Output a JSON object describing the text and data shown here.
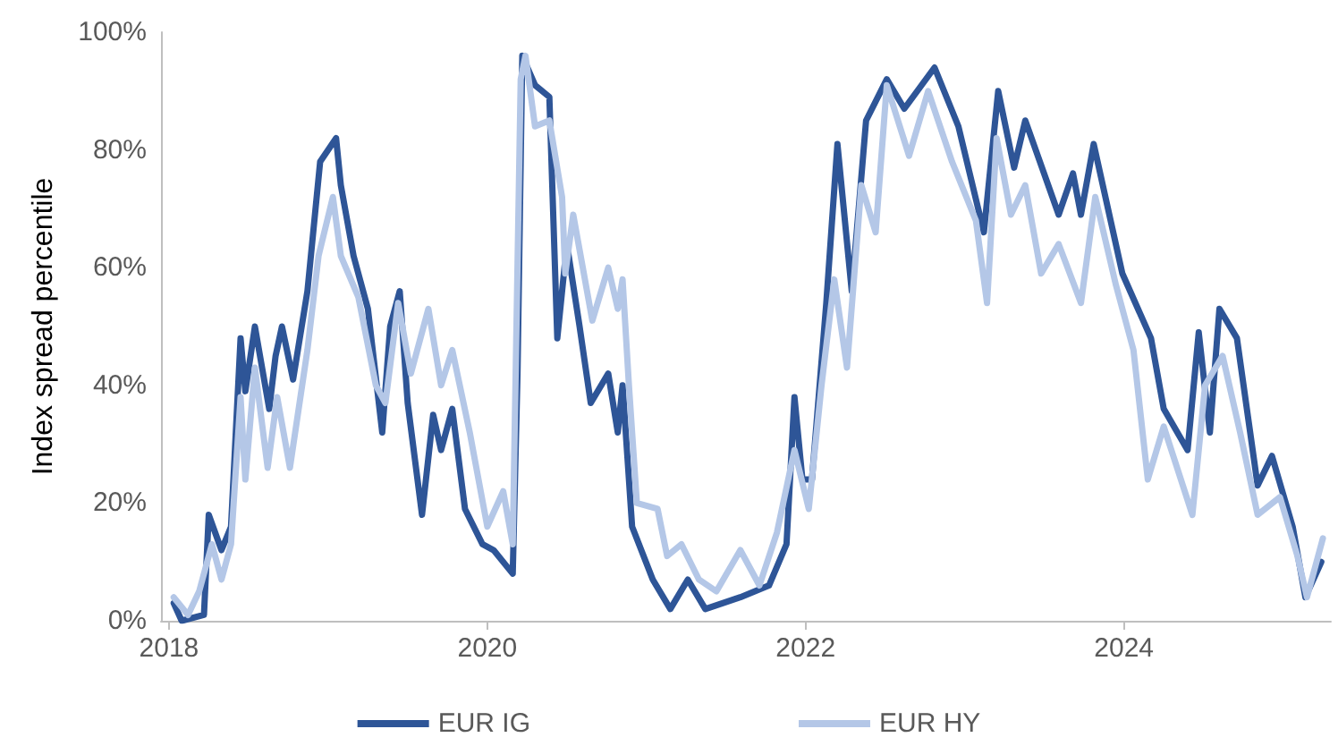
{
  "chart_data": {
    "type": "line",
    "ylabel": "Index spread percentile",
    "xlim": [
      2017.95,
      2025.3
    ],
    "xticks": [
      2018,
      2020,
      2022,
      2024
    ],
    "ylim": [
      0,
      100
    ],
    "yticks": [
      {
        "value": 0,
        "label": "0%"
      },
      {
        "value": 20,
        "label": "20%"
      },
      {
        "value": 40,
        "label": "40%"
      },
      {
        "value": 60,
        "label": "60%"
      },
      {
        "value": 80,
        "label": "80%"
      },
      {
        "value": 100,
        "label": "100%"
      }
    ],
    "grid": false,
    "legend": "bottom",
    "marker": "none",
    "line_style": "solid",
    "series": [
      {
        "name": "EUR IG",
        "color": "#2e5597",
        "x": [
          2018.03,
          2018.08,
          2018.22,
          2018.25,
          2018.33,
          2018.39,
          2018.45,
          2018.48,
          2018.54,
          2018.63,
          2018.67,
          2018.71,
          2018.78,
          2018.87,
          2018.95,
          2019.05,
          2019.08,
          2019.16,
          2019.25,
          2019.34,
          2019.39,
          2019.45,
          2019.5,
          2019.59,
          2019.66,
          2019.71,
          2019.78,
          2019.86,
          2019.97,
          2020.04,
          2020.16,
          2020.19,
          2020.22,
          2020.3,
          2020.39,
          2020.44,
          2020.5,
          2020.58,
          2020.65,
          2020.76,
          2020.82,
          2020.85,
          2020.91,
          2021.04,
          2021.15,
          2021.26,
          2021.37,
          2021.59,
          2021.77,
          2021.88,
          2021.93,
          2021.98,
          2022.04,
          2022.13,
          2022.2,
          2022.29,
          2022.38,
          2022.51,
          2022.62,
          2022.81,
          2022.96,
          2023.12,
          2023.21,
          2023.31,
          2023.38,
          2023.59,
          2023.68,
          2023.73,
          2023.81,
          2023.99,
          2024.17,
          2024.25,
          2024.4,
          2024.47,
          2024.54,
          2024.6,
          2024.71,
          2024.84,
          2024.93,
          2025.06,
          2025.14,
          2025.24
        ],
        "values": [
          3,
          0,
          1,
          18,
          12,
          16,
          48,
          39,
          50,
          36,
          45,
          50,
          41,
          56,
          78,
          82,
          74,
          62,
          53,
          32,
          50,
          56,
          37,
          18,
          35,
          29,
          36,
          19,
          13,
          12,
          8,
          42,
          96,
          91,
          89,
          48,
          64,
          50,
          37,
          42,
          32,
          40,
          16,
          7,
          2,
          7,
          2,
          4,
          6,
          13,
          38,
          24,
          24,
          54,
          81,
          56,
          85,
          92,
          87,
          94,
          84,
          66,
          90,
          77,
          85,
          69,
          76,
          69,
          81,
          59,
          48,
          36,
          29,
          49,
          32,
          53,
          48,
          23,
          28,
          16,
          4,
          10
        ]
      },
      {
        "name": "EUR HY",
        "color": "#b4c7e7",
        "x": [
          2018.03,
          2018.12,
          2018.19,
          2018.27,
          2018.33,
          2018.39,
          2018.45,
          2018.48,
          2018.54,
          2018.62,
          2018.68,
          2018.76,
          2018.87,
          2018.94,
          2019.03,
          2019.08,
          2019.19,
          2019.3,
          2019.36,
          2019.44,
          2019.52,
          2019.63,
          2019.71,
          2019.78,
          2019.89,
          2020,
          2020.1,
          2020.16,
          2020.21,
          2020.24,
          2020.3,
          2020.39,
          2020.47,
          2020.49,
          2020.54,
          2020.6,
          2020.66,
          2020.76,
          2020.82,
          2020.85,
          2020.89,
          2020.94,
          2021.07,
          2021.13,
          2021.22,
          2021.33,
          2021.44,
          2021.59,
          2021.71,
          2021.82,
          2021.93,
          2022.02,
          2022.1,
          2022.18,
          2022.26,
          2022.35,
          2022.44,
          2022.51,
          2022.65,
          2022.77,
          2022.92,
          2023.07,
          2023.14,
          2023.2,
          2023.29,
          2023.38,
          2023.48,
          2023.59,
          2023.73,
          2023.82,
          2023.95,
          2024.06,
          2024.15,
          2024.25,
          2024.43,
          2024.51,
          2024.62,
          2024.73,
          2024.84,
          2024.98,
          2025.09,
          2025.15,
          2025.25
        ],
        "values": [
          4,
          1,
          5,
          13,
          7,
          13,
          38,
          24,
          43,
          26,
          38,
          26,
          46,
          62,
          72,
          62,
          55,
          40,
          37,
          54,
          42,
          53,
          40,
          46,
          32,
          16,
          22,
          13,
          92,
          96,
          84,
          85,
          72,
          59,
          69,
          60,
          51,
          60,
          53,
          58,
          40,
          20,
          19,
          11,
          13,
          7,
          5,
          12,
          6,
          15,
          29,
          19,
          40,
          58,
          43,
          74,
          66,
          91,
          79,
          90,
          78,
          68,
          54,
          82,
          69,
          74,
          59,
          64,
          54,
          72,
          57,
          46,
          24,
          33,
          18,
          40,
          45,
          32,
          18,
          21,
          11,
          4,
          14
        ]
      }
    ]
  }
}
